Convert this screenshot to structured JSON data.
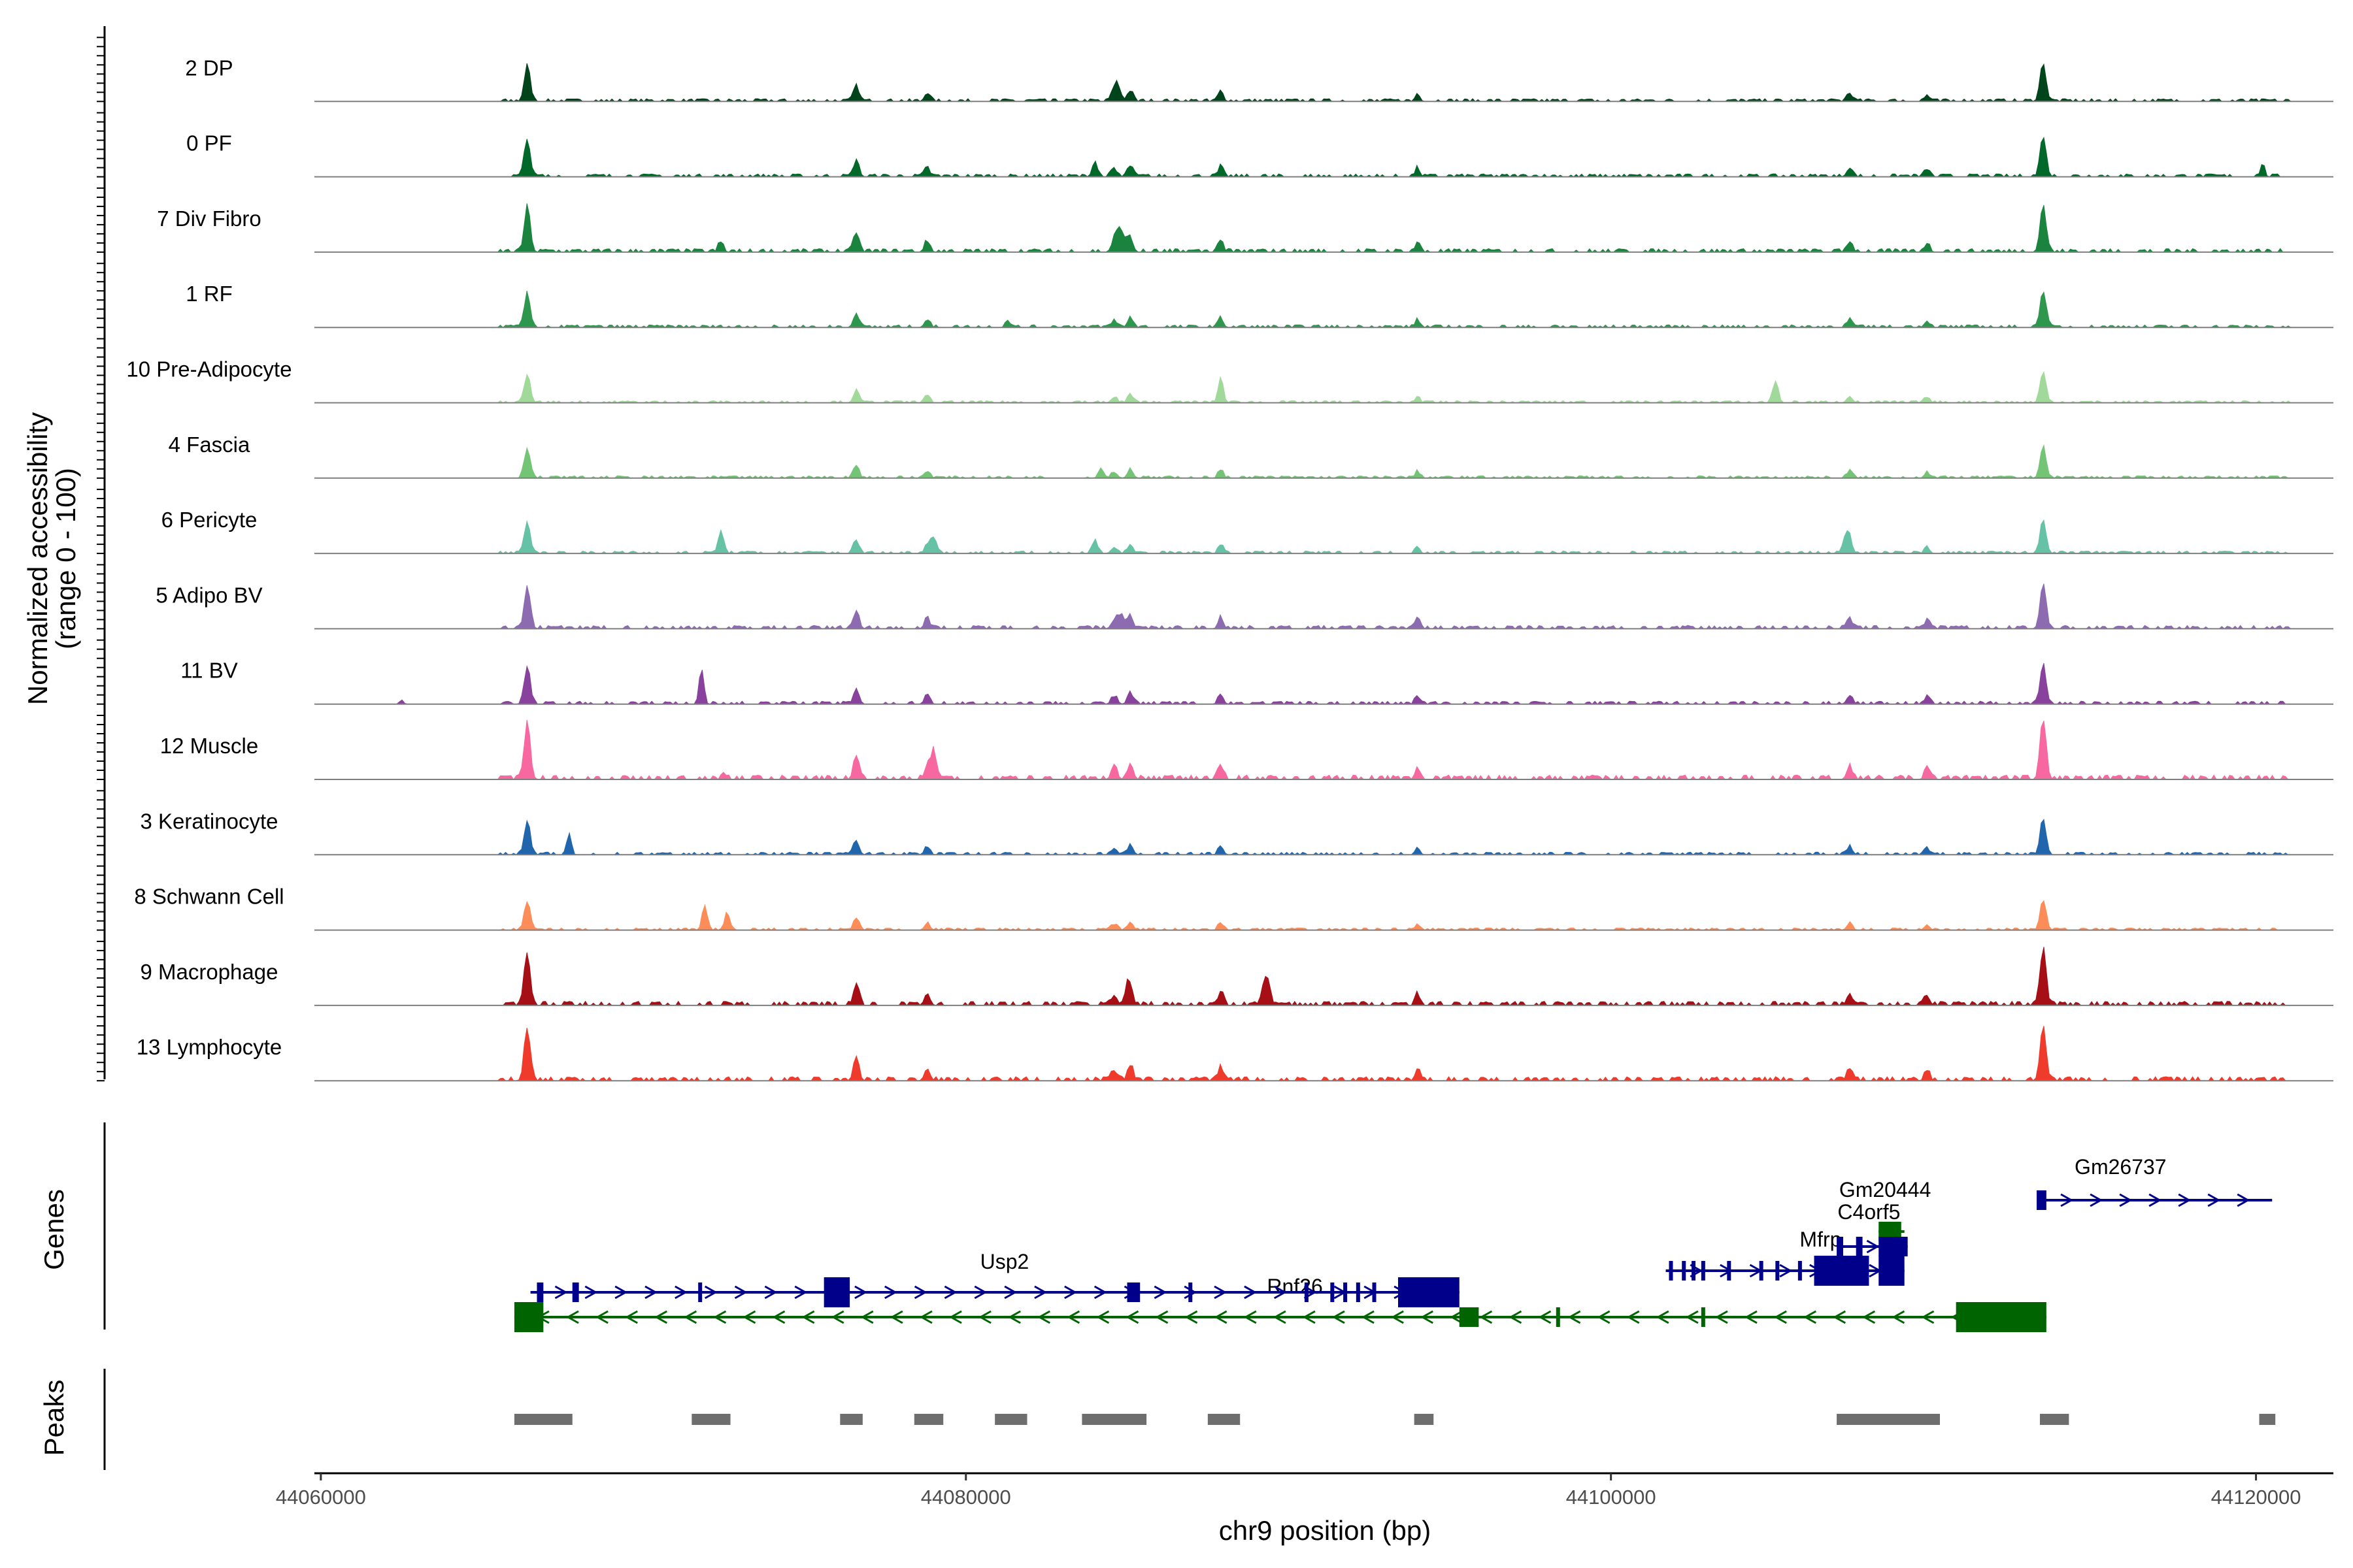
{
  "chart_data": {
    "type": "area",
    "title": "",
    "xlabel": "chr9 position (bp)",
    "ylabel": "Normalized accessibility",
    "ylabel_sub": "(range 0 - 100)",
    "genes_label": "Genes",
    "peaks_label": "Peaks",
    "xlim": [
      44059800,
      44122400
    ],
    "x_ticks": [
      44060000,
      44080000,
      44100000,
      44120000
    ],
    "x_tick_labels": [
      "44060000",
      "44080000",
      "44100000",
      "44120000"
    ],
    "ylim": [
      0,
      100
    ],
    "common_peaks": [
      {
        "x": 44066400,
        "h": 52,
        "w": 130
      },
      {
        "x": 44076600,
        "h": 22,
        "w": 120
      },
      {
        "x": 44078800,
        "h": 12,
        "w": 120
      },
      {
        "x": 44084600,
        "h": 10,
        "w": 130
      },
      {
        "x": 44085100,
        "h": 15,
        "w": 120
      },
      {
        "x": 44087900,
        "h": 14,
        "w": 110
      },
      {
        "x": 44094000,
        "h": 12,
        "w": 100
      },
      {
        "x": 44107400,
        "h": 12,
        "w": 120
      },
      {
        "x": 44109800,
        "h": 10,
        "w": 110
      },
      {
        "x": 44113400,
        "h": 55,
        "w": 130
      }
    ],
    "tracks": [
      {
        "name": "2 DP",
        "color": "#00441b",
        "scale": 0.95,
        "extra": [
          {
            "x": 44084700,
            "h": 20,
            "w": 150
          }
        ]
      },
      {
        "name": "0 PF",
        "color": "#00692a",
        "scale": 1.0,
        "extra": [
          {
            "x": 44084000,
            "h": 22,
            "w": 110
          },
          {
            "x": 44120200,
            "h": 18,
            "w": 90
          }
        ]
      },
      {
        "name": "7 Div Fibro",
        "color": "#1a843f",
        "scale": 1.2,
        "extra": [
          {
            "x": 44072400,
            "h": 14,
            "w": 110
          },
          {
            "x": 44084800,
            "h": 30,
            "w": 180
          }
        ]
      },
      {
        "name": "1 RF",
        "color": "#2e974e",
        "scale": 0.9,
        "extra": [
          {
            "x": 44081300,
            "h": 10,
            "w": 100
          }
        ]
      },
      {
        "name": "10 Pre-Adipocyte",
        "color": "#a1d99b",
        "scale": 0.75,
        "extra": [
          {
            "x": 44105100,
            "h": 30,
            "w": 120
          },
          {
            "x": 44087900,
            "h": 25,
            "w": 110
          }
        ]
      },
      {
        "name": "4 Fascia",
        "color": "#74c476",
        "scale": 0.8,
        "extra": [
          {
            "x": 44084200,
            "h": 12,
            "w": 120
          }
        ]
      },
      {
        "name": "6 Pericyte",
        "color": "#66c2a4",
        "scale": 0.85,
        "extra": [
          {
            "x": 44072400,
            "h": 30,
            "w": 120
          },
          {
            "x": 44079000,
            "h": 22,
            "w": 140
          },
          {
            "x": 44084000,
            "h": 18,
            "w": 120
          },
          {
            "x": 44107300,
            "h": 25,
            "w": 150
          }
        ]
      },
      {
        "name": "5 Adipo BV",
        "color": "#8c6bb1",
        "scale": 1.15,
        "extra": [
          {
            "x": 44084800,
            "h": 18,
            "w": 130
          }
        ]
      },
      {
        "name": "11 BV",
        "color": "#88419d",
        "scale": 1.0,
        "extra": [
          {
            "x": 44071800,
            "h": 50,
            "w": 100
          },
          {
            "x": 44062500,
            "h": 6,
            "w": 80
          }
        ]
      },
      {
        "name": "12 Muscle",
        "color": "#f768a1",
        "scale": 1.5,
        "extra": [
          {
            "x": 44079000,
            "h": 40,
            "w": 120
          },
          {
            "x": 44072500,
            "h": 10,
            "w": 90
          }
        ]
      },
      {
        "name": "3 Keratinocyte",
        "color": "#2166ac",
        "scale": 0.9,
        "extra": [
          {
            "x": 44067700,
            "h": 30,
            "w": 90
          }
        ]
      },
      {
        "name": "8 Schwann Cell",
        "color": "#fc8d59",
        "scale": 0.75,
        "extra": [
          {
            "x": 44071900,
            "h": 32,
            "w": 110
          },
          {
            "x": 44072600,
            "h": 25,
            "w": 100
          }
        ]
      },
      {
        "name": "9 Macrophage",
        "color": "#a50f15",
        "scale": 1.4,
        "extra": [
          {
            "x": 44089300,
            "h": 40,
            "w": 160
          },
          {
            "x": 44085000,
            "h": 25,
            "w": 100
          }
        ]
      },
      {
        "name": "13 Lymphocyte",
        "color": "#ef3b2c",
        "scale": 1.4,
        "extra": []
      }
    ],
    "genes": {
      "blue": "#00008b",
      "green": "#006400",
      "labels": [
        {
          "name": "Gm26737",
          "x": 44115800,
          "row": 0
        },
        {
          "name": "Gm20444",
          "x": 44108500,
          "row": 1
        },
        {
          "name": "C4orf5",
          "x": 44108000,
          "row": 2
        },
        {
          "name": "Mfrp",
          "x": 44106500,
          "row": 3
        },
        {
          "name": "Usp2",
          "x": 44081200,
          "row": 4
        },
        {
          "name": "Rnf26",
          "x": 44090200,
          "row": 5
        }
      ],
      "strands": [
        {
          "row": 0,
          "start": 44113200,
          "end": 44120500,
          "dir": 1,
          "color": "blue",
          "exons": [
            [
              44113200,
              44113500
            ]
          ],
          "tall": []
        },
        {
          "row": 1,
          "start": 44108300,
          "end": 44109100,
          "dir": 1,
          "color": "green",
          "exons": [
            [
              44108300,
              44109000
            ]
          ],
          "tall": []
        },
        {
          "row": 2,
          "start": 44107000,
          "end": 44109200,
          "dir": 1,
          "color": "blue",
          "exons": [
            [
              44107000,
              44107200
            ],
            [
              44107600,
              44107800
            ],
            [
              44108300,
              44109200
            ]
          ],
          "tall": []
        },
        {
          "row": 3,
          "start": 44101700,
          "end": 44109100,
          "dir": 1,
          "color": "blue",
          "exons": [
            [
              44101800,
              44101900
            ],
            [
              44102200,
              44102300
            ],
            [
              44102500,
              44102600
            ],
            [
              44102800,
              44102900
            ],
            [
              44103600,
              44103700
            ],
            [
              44104600,
              44104700
            ],
            [
              44105100,
              44105200
            ],
            [
              44105800,
              44105900
            ],
            [
              44106300,
              44108000
            ],
            [
              44108300,
              44109100
            ]
          ],
          "tall": [
            [
              44106300,
              44108000
            ],
            [
              44108300,
              44109100
            ]
          ]
        },
        {
          "row": 4,
          "start": 44066500,
          "end": 44095300,
          "dir": 1,
          "color": "blue",
          "exons": [
            [
              44066700,
              44066900
            ],
            [
              44067800,
              44068000
            ],
            [
              44071700,
              44071800
            ],
            [
              44075600,
              44076400
            ],
            [
              44085000,
              44085400
            ],
            [
              44086900,
              44087000
            ],
            [
              44090500,
              44090600
            ],
            [
              44091300,
              44091400
            ],
            [
              44091700,
              44091800
            ],
            [
              44092100,
              44092200
            ],
            [
              44092600,
              44092700
            ],
            [
              44093400,
              44095300
            ]
          ],
          "tall": [
            [
              44075600,
              44076400
            ],
            [
              44093400,
              44095300
            ]
          ]
        },
        {
          "row": 5,
          "start": 44066000,
          "end": 44113500,
          "dir": -1,
          "color": "green",
          "exons": [
            [
              44066000,
              44066900
            ],
            [
              44095300,
              44095900
            ],
            [
              44098300,
              44098400
            ],
            [
              44102800,
              44102900
            ],
            [
              44110700,
              44113500
            ]
          ],
          "tall": [
            [
              44066000,
              44066900
            ],
            [
              44110700,
              44113500
            ]
          ]
        }
      ]
    },
    "peaks": [
      [
        44066000,
        44067800
      ],
      [
        44071500,
        44072700
      ],
      [
        44076100,
        44076800
      ],
      [
        44078400,
        44079300
      ],
      [
        44080900,
        44081900
      ],
      [
        44083600,
        44085600
      ],
      [
        44087500,
        44088500
      ],
      [
        44093900,
        44094500
      ],
      [
        44107000,
        44110200
      ],
      [
        44113300,
        44114200
      ],
      [
        44120100,
        44120600
      ]
    ]
  }
}
